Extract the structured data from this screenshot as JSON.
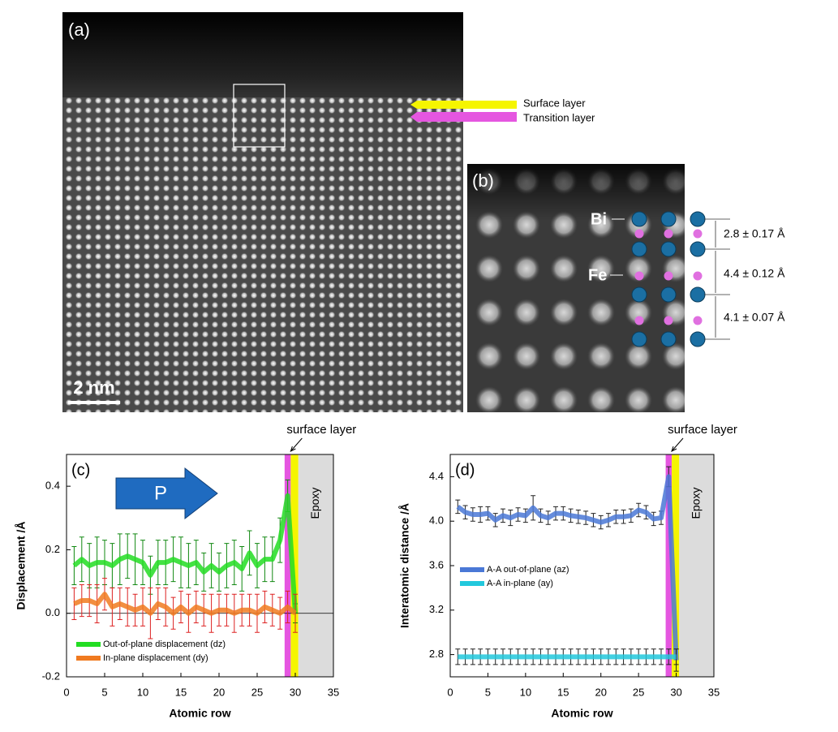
{
  "panel_a": {
    "label": "(a)",
    "scale_bar": "2 nm",
    "layers": [
      "Surface layer",
      "Transition layer"
    ]
  },
  "panel_b": {
    "label": "(b)",
    "atoms": [
      "Bi",
      "Fe"
    ],
    "distances": [
      "2.8 ± 0.17 Å",
      "4.4 ± 0.12 Å",
      "4.1 ± 0.07 Å"
    ]
  },
  "chart_data": [
    {
      "type": "line",
      "panel_label": "(c)",
      "arrow_label": "P",
      "x_label": "Atomic row",
      "y_label": "Displacement /Å",
      "annotation": "surface layer",
      "region_label": "Epoxy",
      "xlim": [
        0,
        35
      ],
      "xticks": [
        0,
        5,
        10,
        15,
        20,
        25,
        30,
        35
      ],
      "ylim": [
        -0.2,
        0.5
      ],
      "yticks": [
        -0.2,
        {
          "value": 0,
          "label": "0.0"
        },
        0.2,
        0.4
      ],
      "hline": 0,
      "legend": "lower left",
      "bands": [
        {
          "from": 28.6,
          "to": 29.4,
          "color": "#e556e0"
        },
        {
          "from": 29.4,
          "to": 30.4,
          "color": "#f5f500"
        },
        {
          "from": 30.4,
          "to": 35,
          "color": "#dcdcdc"
        }
      ],
      "x": [
        1,
        2,
        3,
        4,
        5,
        6,
        7,
        8,
        9,
        10,
        11,
        12,
        13,
        14,
        15,
        16,
        17,
        18,
        19,
        20,
        21,
        22,
        23,
        24,
        25,
        26,
        27,
        28,
        29,
        30
      ],
      "series": [
        {
          "name": "Out-of-plane displacement (dz)",
          "color": "#22dd22",
          "err_color": "#118811",
          "values": [
            0.15,
            0.17,
            0.15,
            0.16,
            0.16,
            0.15,
            0.17,
            0.18,
            0.17,
            0.16,
            0.12,
            0.16,
            0.16,
            0.17,
            0.16,
            0.15,
            0.16,
            0.13,
            0.15,
            0.13,
            0.15,
            0.16,
            0.14,
            0.19,
            0.15,
            0.17,
            0.17,
            0.23,
            0.37,
            0.0
          ],
          "errors": [
            0.06,
            0.07,
            0.07,
            0.08,
            0.07,
            0.07,
            0.08,
            0.07,
            0.08,
            0.07,
            0.06,
            0.07,
            0.07,
            0.07,
            0.08,
            0.07,
            0.07,
            0.06,
            0.07,
            0.06,
            0.07,
            0.07,
            0.07,
            0.07,
            0.07,
            0.07,
            0.07,
            0.07,
            0.05,
            0.03
          ]
        },
        {
          "name": "In-plane displacement (dy)",
          "color": "#f07a20",
          "err_color": "#dd2222",
          "values": [
            0.03,
            0.04,
            0.04,
            0.03,
            0.06,
            0.02,
            0.03,
            0.02,
            0.01,
            0.02,
            0.0,
            0.03,
            0.02,
            0.0,
            0.02,
            0.0,
            0.02,
            0.01,
            0.0,
            0.01,
            0.01,
            0.0,
            0.01,
            0.01,
            0.0,
            0.02,
            0.01,
            0.0,
            0.02,
            0.0
          ],
          "errors": [
            0.05,
            0.05,
            0.05,
            0.06,
            0.05,
            0.06,
            0.05,
            0.06,
            0.05,
            0.06,
            0.08,
            0.05,
            0.06,
            0.05,
            0.05,
            0.06,
            0.05,
            0.05,
            0.06,
            0.05,
            0.05,
            0.06,
            0.05,
            0.05,
            0.06,
            0.05,
            0.05,
            0.05,
            0.05,
            0.06
          ]
        }
      ]
    },
    {
      "type": "line",
      "panel_label": "(d)",
      "x_label": "Atomic row",
      "y_label": "Interatomic distance /Å",
      "annotation": "surface layer",
      "region_label": "Epoxy",
      "xlim": [
        0,
        35
      ],
      "xticks": [
        0,
        5,
        10,
        15,
        20,
        25,
        30,
        35
      ],
      "ylim": [
        2.6,
        4.6
      ],
      "yticks": [
        2.8,
        3.2,
        3.6,
        {
          "value": 4,
          "label": "4.0"
        },
        4.4
      ],
      "legend": "center left",
      "bands": [
        {
          "from": 28.6,
          "to": 29.4,
          "color": "#e556e0"
        },
        {
          "from": 29.4,
          "to": 30.4,
          "color": "#f5f500"
        },
        {
          "from": 30.4,
          "to": 35,
          "color": "#dcdcdc"
        }
      ],
      "x": [
        1,
        2,
        3,
        4,
        5,
        6,
        7,
        8,
        9,
        10,
        11,
        12,
        13,
        14,
        15,
        16,
        17,
        18,
        19,
        20,
        21,
        22,
        23,
        24,
        25,
        26,
        27,
        28,
        29,
        30
      ],
      "series": [
        {
          "name": "A-A out-of-plane (az)",
          "color": "#4a78d6",
          "err_color": "#222222",
          "values": [
            4.13,
            4.08,
            4.06,
            4.06,
            4.07,
            4.01,
            4.05,
            4.03,
            4.06,
            4.05,
            4.12,
            4.05,
            4.03,
            4.07,
            4.07,
            4.05,
            4.04,
            4.03,
            4.01,
            3.99,
            4.01,
            4.04,
            4.04,
            4.05,
            4.1,
            4.08,
            4.02,
            4.03,
            4.4,
            2.75
          ],
          "errors": [
            0.06,
            0.06,
            0.06,
            0.07,
            0.06,
            0.06,
            0.06,
            0.07,
            0.06,
            0.06,
            0.11,
            0.06,
            0.06,
            0.06,
            0.06,
            0.06,
            0.06,
            0.06,
            0.06,
            0.06,
            0.06,
            0.06,
            0.06,
            0.06,
            0.06,
            0.06,
            0.06,
            0.06,
            0.09,
            0.1
          ]
        },
        {
          "name": "A-A in-plane (ay)",
          "color": "#22c8dc",
          "err_color": "#222222",
          "values": [
            2.78,
            2.78,
            2.78,
            2.78,
            2.78,
            2.78,
            2.78,
            2.78,
            2.78,
            2.78,
            2.78,
            2.78,
            2.78,
            2.78,
            2.78,
            2.78,
            2.78,
            2.78,
            2.78,
            2.78,
            2.78,
            2.78,
            2.78,
            2.78,
            2.78,
            2.78,
            2.78,
            2.78,
            2.78,
            2.78
          ],
          "errors": [
            0.07,
            0.07,
            0.07,
            0.07,
            0.07,
            0.07,
            0.07,
            0.07,
            0.07,
            0.07,
            0.07,
            0.07,
            0.07,
            0.07,
            0.07,
            0.07,
            0.07,
            0.07,
            0.07,
            0.07,
            0.07,
            0.07,
            0.07,
            0.07,
            0.07,
            0.07,
            0.07,
            0.07,
            0.07,
            0.07
          ]
        }
      ]
    }
  ]
}
